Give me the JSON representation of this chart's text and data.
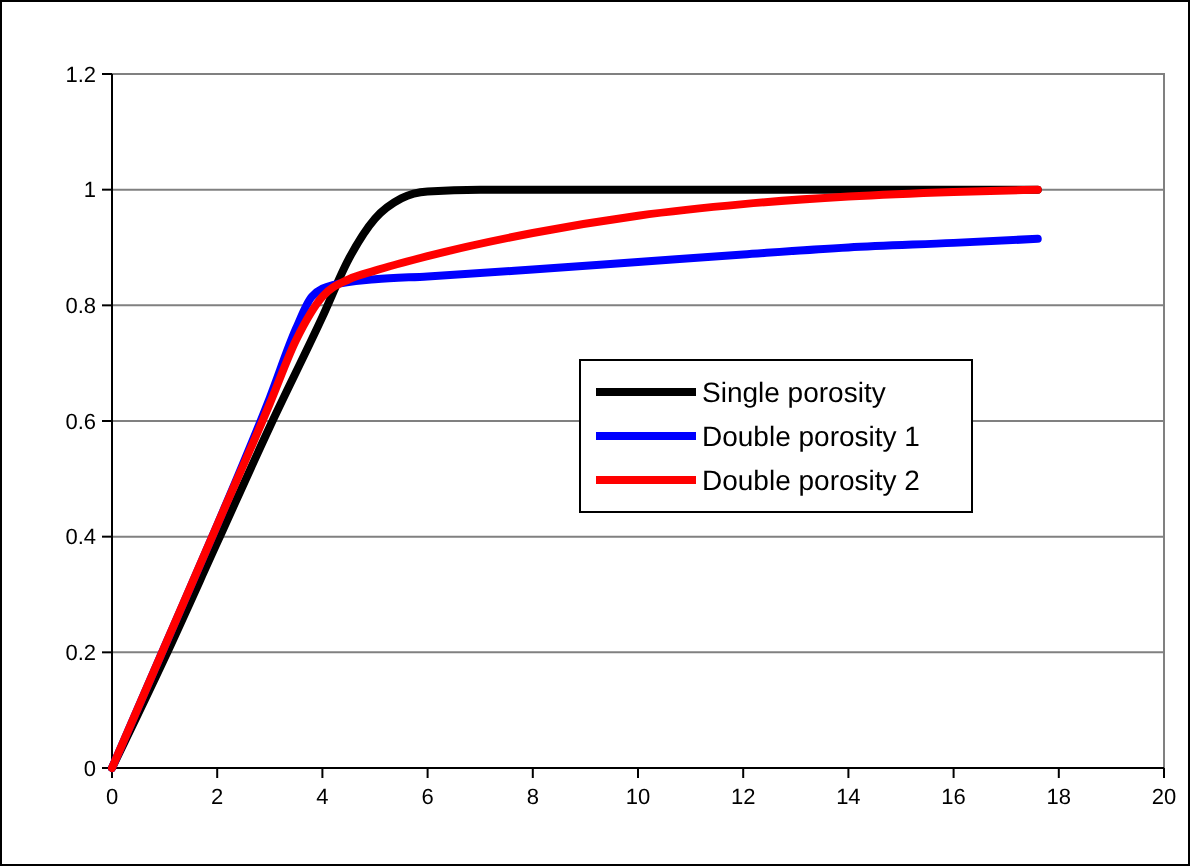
{
  "chart_data": {
    "type": "line",
    "xlim": [
      0,
      20
    ],
    "xticks": [
      0,
      2,
      4,
      6,
      8,
      10,
      12,
      14,
      16,
      18,
      20
    ],
    "ylim": [
      0,
      1.2
    ],
    "yticks": [
      0,
      0.2,
      0.4,
      0.6,
      0.8,
      1,
      1.2
    ],
    "grid": "y",
    "legend": "right",
    "marker": "none",
    "line_style": "solid",
    "series": [
      {
        "name": "Single porosity",
        "color": "#000000",
        "x": [
          0,
          1,
          2,
          3,
          4,
          4.5,
          5,
          5.5,
          6,
          7,
          10,
          14,
          17.6
        ],
        "values": [
          0,
          0.19,
          0.39,
          0.59,
          0.78,
          0.88,
          0.95,
          0.985,
          0.997,
          1,
          1,
          1,
          1
        ]
      },
      {
        "name": "Double porosity 1",
        "color": "#0000ff",
        "x": [
          0,
          1,
          2,
          3,
          3.5,
          3.8,
          4.2,
          5,
          6,
          8,
          10,
          12,
          14,
          16,
          17.6
        ],
        "values": [
          0,
          0.21,
          0.42,
          0.64,
          0.76,
          0.815,
          0.835,
          0.845,
          0.85,
          0.862,
          0.875,
          0.888,
          0.9,
          0.908,
          0.915
        ]
      },
      {
        "name": "Double porosity 2",
        "color": "#ff0000",
        "x": [
          0,
          1,
          2,
          3,
          3.5,
          4,
          4.5,
          5,
          6,
          8,
          10,
          12,
          14,
          16,
          17.6
        ],
        "values": [
          0,
          0.21,
          0.42,
          0.63,
          0.74,
          0.815,
          0.845,
          0.86,
          0.885,
          0.925,
          0.955,
          0.975,
          0.988,
          0.996,
          1
        ]
      }
    ]
  }
}
